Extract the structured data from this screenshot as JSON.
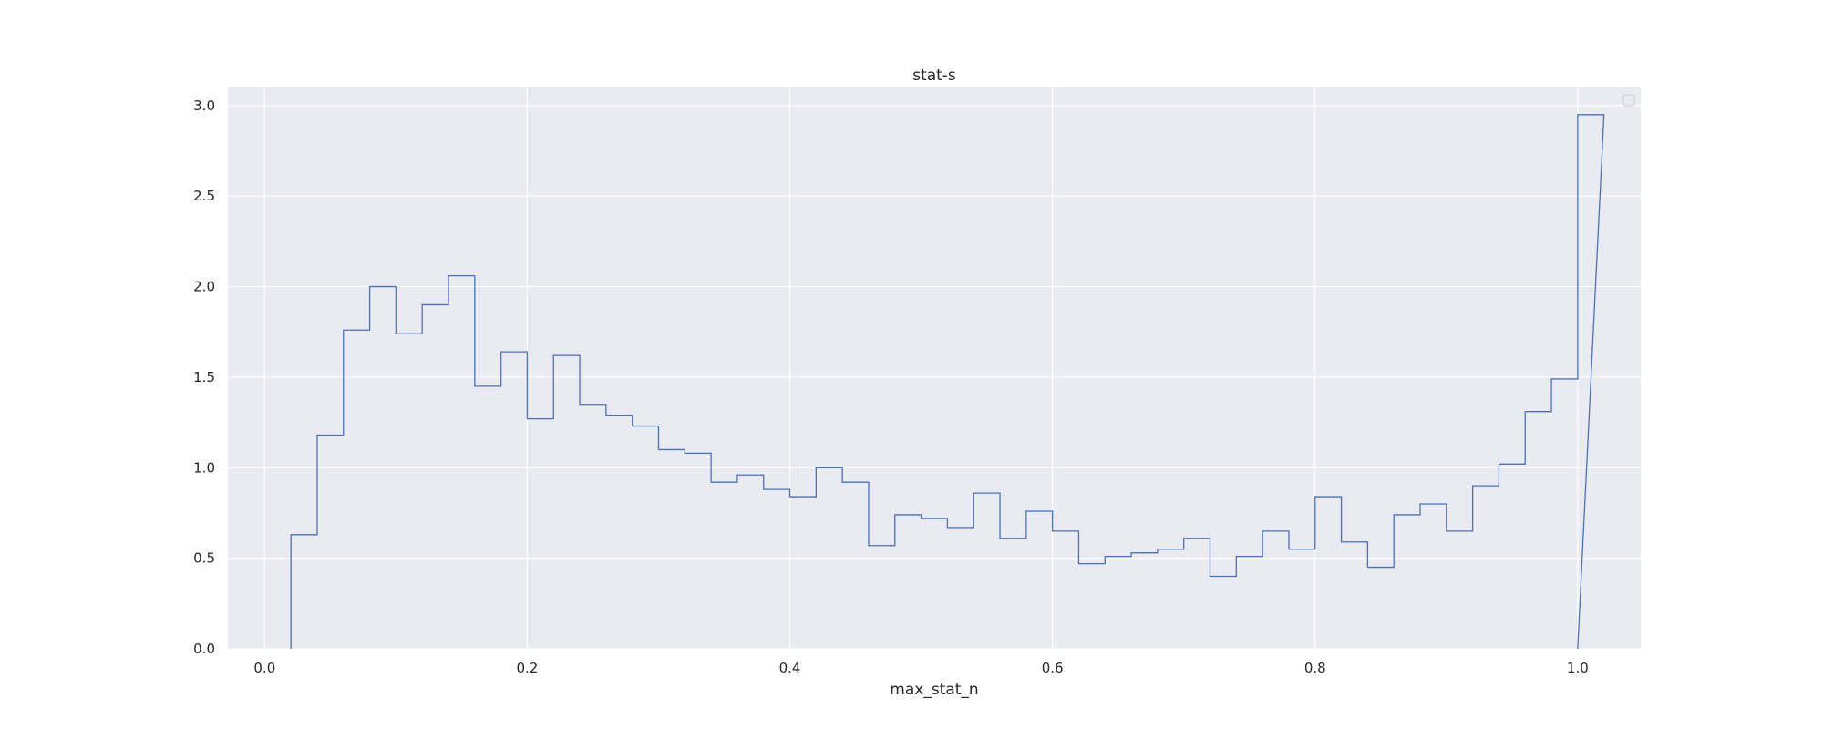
{
  "chart_data": {
    "type": "histogram-step",
    "title": "stat-s",
    "xlabel": "max_stat_n",
    "ylabel": "",
    "xlim": [
      -0.028,
      1.048
    ],
    "ylim": [
      0,
      3.1
    ],
    "x_ticks": [
      0.0,
      0.2,
      0.4,
      0.6,
      0.8,
      1.0
    ],
    "x_tick_labels": [
      "0.0",
      "0.2",
      "0.4",
      "0.6",
      "0.8",
      "1.0"
    ],
    "y_ticks": [
      0.0,
      0.5,
      1.0,
      1.5,
      2.0,
      2.5,
      3.0
    ],
    "y_tick_labels": [
      "0.0",
      "0.5",
      "1.0",
      "1.5",
      "2.0",
      "2.5",
      "3.0"
    ],
    "grid": true,
    "legend": "top-right (empty)",
    "colors": {
      "background": "#eaeaf2",
      "grid": "#ffffff",
      "line": "#4c72b0",
      "text": "#262626"
    },
    "bin_edges": [
      0.02,
      0.04,
      0.06,
      0.08,
      0.1,
      0.12,
      0.14,
      0.16,
      0.18,
      0.2,
      0.22,
      0.24,
      0.26,
      0.28,
      0.3,
      0.32,
      0.34,
      0.36,
      0.38,
      0.4,
      0.42,
      0.44,
      0.46,
      0.48,
      0.5,
      0.52,
      0.54,
      0.56,
      0.58,
      0.6,
      0.62,
      0.64,
      0.66,
      0.68,
      0.7,
      0.72,
      0.74,
      0.76,
      0.78,
      0.8,
      0.82,
      0.84,
      0.86,
      0.88,
      0.9,
      0.92,
      0.94,
      0.96,
      0.98,
      1.0
    ],
    "values": [
      0.63,
      1.18,
      1.76,
      2.0,
      1.74,
      1.9,
      2.06,
      1.45,
      1.64,
      1.27,
      1.62,
      1.35,
      1.29,
      1.23,
      1.1,
      1.08,
      0.92,
      0.96,
      0.88,
      0.84,
      1.0,
      0.92,
      0.57,
      0.74,
      0.72,
      0.67,
      0.86,
      0.61,
      0.76,
      0.65,
      0.47,
      0.51,
      0.53,
      0.55,
      0.61,
      0.4,
      0.51,
      0.65,
      0.55,
      0.84,
      0.59,
      0.45,
      0.74,
      0.8,
      0.65,
      0.9,
      1.02,
      1.31,
      1.49,
      2.95
    ]
  }
}
